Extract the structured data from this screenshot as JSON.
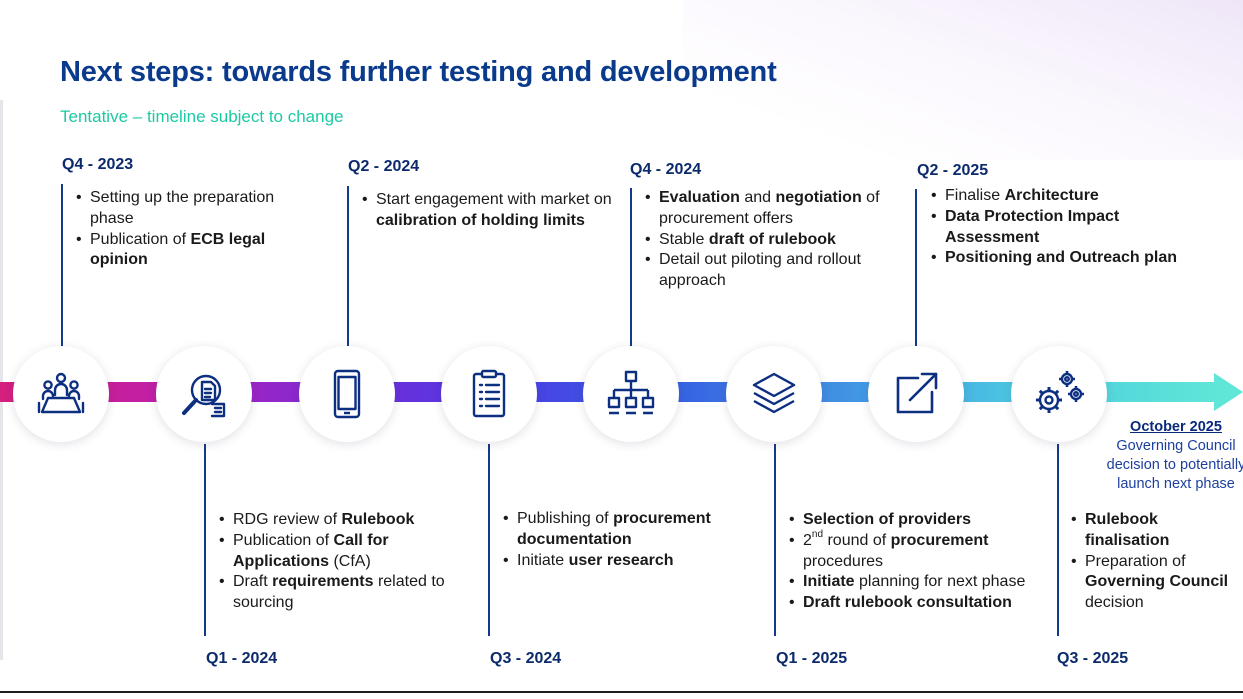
{
  "title": "Next steps: towards further testing and development",
  "subtitle": "Tentative – timeline subject to change",
  "top": [
    {
      "quarter": "Q4 - 2023",
      "items": [
        "Setting up the preparation phase",
        "Publication of ECB legal opinion"
      ]
    },
    {
      "quarter": "Q2 - 2024",
      "items": [
        "Start engagement with market on calibration of holding limits"
      ]
    },
    {
      "quarter": "Q4 - 2024",
      "items": [
        "Evaluation and negotiation of procurement offers",
        "Stable draft of rulebook",
        "Detail out piloting and rollout approach"
      ]
    },
    {
      "quarter": "Q2 - 2025",
      "items": [
        "Finalise Architecture",
        "Data Protection Impact Assessment",
        "Positioning and Outreach plan"
      ]
    }
  ],
  "bottom": [
    {
      "quarter": "Q1 - 2024",
      "items": [
        "RDG review of Rulebook",
        "Publication of Call for Applications (CfA)",
        "Draft requirements related to sourcing"
      ]
    },
    {
      "quarter": "Q3 - 2024",
      "items": [
        "Publishing of procurement documentation",
        "Initiate user research"
      ]
    },
    {
      "quarter": "Q1 - 2025",
      "items": [
        "Selection of providers",
        "2nd round of procurement procedures",
        "Initiate planning for next phase",
        "Draft rulebook consultation"
      ]
    },
    {
      "quarter": "Q3 - 2025",
      "items": [
        "Rulebook finalisation",
        "Preparation of Governing Council decision"
      ]
    }
  ],
  "final": {
    "date": "October 2025",
    "lines": [
      "Governing Council",
      "decision to potentially",
      "launch next phase"
    ]
  },
  "icons": [
    "meeting-table-icon",
    "document-search-icon",
    "mobile-phone-icon",
    "clipboard-list-icon",
    "org-chart-icon",
    "layers-icon",
    "external-link-icon",
    "gears-icon"
  ],
  "colors": {
    "title": "#0a3a8c",
    "subtitle": "#1dc9a4",
    "quarter": "#0a2a6c",
    "icon": "#0c2f82",
    "bar_start": "#d5207e",
    "bar_end": "#5fe6d6"
  }
}
